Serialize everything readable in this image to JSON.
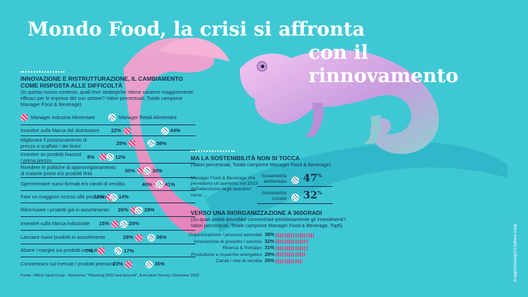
{
  "title_line1": "Mondo Food, la crisi si affronta",
  "title_line2": "con il rinnovamento",
  "colors": {
    "industria": "#e0407a",
    "retail": "#1f6f8a",
    "background": "#3ec8d4",
    "text": "#1b2d4a"
  },
  "chart_data": [
    {
      "type": "dot",
      "title": "INNOVAZIONE E RISTRUTTURAZIONE, IL CAMBIAMENTO COME RISPOSTA ALLE DIFFICOLTÀ",
      "subtitle": "(In questo nuovo contesto, quali leve strategiche ritiene saranno maggiormente efficaci per le imprese del suo settore? Valori percentuali, Totale campione Manager Food & Beverage)",
      "legend": [
        "Manager Industria Alimentare",
        "Manager Retail Alimentare"
      ],
      "categories": [
        "Investire sulla Marca del distributore",
        "Migliorare il posizionamento di prezzo a scaffale / dei listini",
        "Investire su prodotti lowcost / prima prezzo",
        "Rivedere le politiche di approvvigionamento di materie prime e/o prodotti finiti",
        "Sperimentare nuovi formati e/o canali di vendita",
        "Fare un maggiore ricorso alle promozioni",
        "Riformulare i prodotti già in assortimento",
        "Investire sulla Marca industriale",
        "Lanciare nuovi prodotti in assortimento",
        "Alzare i margini sui prodotti venduti",
        "Concentrarsi sui mercati / prodotti premium"
      ],
      "category_labels": [
        "Investire sulla Marca del distributore",
        "Migliorare il posizionamento di|prezzo a scaffale / dei listini",
        "Investire su prodotti lowcost|/ prima prezzo",
        "Rivedere le politiche di approvvigionamento|di materie prime e/o prodotti finiti",
        "Sperimentare nuovi formati e/o canali di vendita",
        "Fare un maggiore ricorso alle promozioni",
        "Riformulare i prodotti già in assortimento",
        "Investire sulla Marca industriale",
        "Lanciare nuovi prodotti in assortimento",
        "Alzare i margini sui prodotti venduti",
        "Concentrarsi sui mercati / prodotti premium"
      ],
      "series": [
        {
          "name": "Manager Industria Alimentare",
          "values": [
            22,
            25,
            8,
            30,
            40,
            12,
            26,
            15,
            29,
            7,
            23
          ]
        },
        {
          "name": "Manager Retail Alimentare",
          "values": [
            44,
            36,
            12,
            30,
            41,
            14,
            29,
            20,
            36,
            17,
            35
          ]
        }
      ],
      "value_labels": {
        "industria": [
          "22%",
          "25%",
          "8%",
          "30%",
          "40%",
          "12%",
          "26%",
          "15%",
          "29%",
          "7%",
          "23%"
        ],
        "retail": [
          "44%",
          "36%",
          "12%",
          "30%",
          "41%",
          "14%",
          "29%",
          "20%",
          "36%",
          "17%",
          "35%"
        ]
      },
      "xlim": [
        0,
        50
      ]
    },
    {
      "type": "table",
      "title": "MA LA SOSTENIBILITÀ NON SI TOCCA",
      "subtitle": "(Valori percentuali, Totale campione Manager Food & Beverage)",
      "description": "Manager Food & Beverage che prevedono un aumento nel 2023 dell'attenzione degli operatori verso ...",
      "categories": [
        "Sostenibilità ambientale",
        "Sostenibilità sociale"
      ],
      "category_labels": [
        "Sostenibilità|ambientale",
        "Sostenibilità|sociale"
      ],
      "values": [
        47,
        32
      ],
      "value_labels": [
        "47",
        "32"
      ],
      "unit": "%"
    },
    {
      "type": "bar",
      "title": "VERSO UNA RIORGANIZZAZIONE A 360GRADI",
      "subtitle": "(Su quali ambiti dovrebbe concentrare prioritariamente gli investimenti?. Valori percentuali, Totale campione Manager Food & Beverage, Top5)",
      "categories": [
        "Organizzazione / processi aziendali",
        "Innovazione di prodotto / servizio",
        "Ricerca & Sviluppo",
        "Produzione e risparmio energetico",
        "Canali / rete di vendita"
      ],
      "values": [
        38,
        32,
        31,
        29,
        26
      ],
      "value_labels": [
        "38%",
        "32%",
        "31%",
        "29%",
        "26%"
      ],
      "xlim": [
        0,
        40
      ]
    }
  ],
  "source": "Fonte: Ufficio Studi Coop - Nomisma, \"Planning 2023 and beyond\", Executive Survey, Dicembre 2022",
  "vertical_credit": "#rapportocoop23 italiani.coop"
}
